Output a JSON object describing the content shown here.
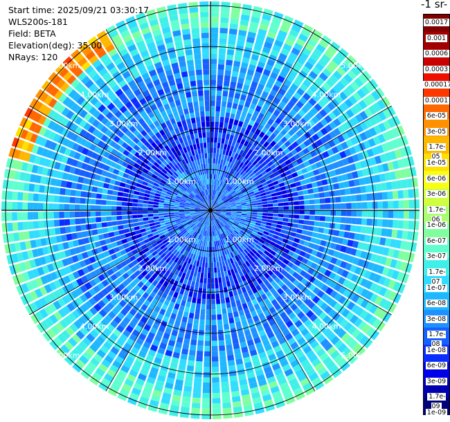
{
  "info": {
    "start_time": "Start time: 2025/09/21 03:30:17",
    "instrument": "WLS200s-181",
    "field": "Field: BETA",
    "elevation": "Elevation(deg): 35.00",
    "nrays": "NRays: 120"
  },
  "chart_data": {
    "type": "heatmap",
    "projection": "polar-ppi",
    "field": "BETA",
    "elevation_deg": 35.0,
    "n_rays": 120,
    "max_range_km": 5.0,
    "range_rings_km": [
      1,
      2,
      3,
      4,
      5
    ],
    "ring_labels": [
      "1.00km",
      "2.00km",
      "3.00km",
      "4.00km",
      "5.00km"
    ],
    "colorbar": {
      "title": "-1 sr-",
      "scale": "log",
      "range": [
        1e-09,
        0.0017
      ],
      "colors": [
        "#00007a",
        "#0000b0",
        "#0000e8",
        "#0a2cff",
        "#1560ff",
        "#1e90ff",
        "#1fb8ff",
        "#30dcff",
        "#40f0e8",
        "#60ffd0",
        "#80ffa0",
        "#a8ff70",
        "#d0ff40",
        "#f8ff10",
        "#ffe000",
        "#ffb800",
        "#ff9000",
        "#ff6800",
        "#ff3800",
        "#f01000",
        "#c80000",
        "#a00000",
        "#800000"
      ],
      "tick_labels": [
        "0.0017",
        "0.001",
        "0.0006",
        "0.0003",
        "0.00017",
        "0.0001",
        "6e-05",
        "3e-05",
        "1.7e-05",
        "1e-05",
        "6e-06",
        "3e-06",
        "1.7e-06",
        "1e-06",
        "6e-07",
        "3e-07",
        "1.7e-07",
        "1e-07",
        "6e-08",
        "3e-08",
        "1.7e-08",
        "1e-08",
        "6e-09",
        "3e-09",
        "1.7e-09",
        "1e-09"
      ]
    },
    "regions": [
      {
        "range_km": [
          0.0,
          1.2
        ],
        "value": 2e-08
      },
      {
        "range_km": [
          1.2,
          2.2
        ],
        "value": 1e-08
      },
      {
        "range_km": [
          2.2,
          3.6
        ],
        "value": 3e-08
      },
      {
        "range_km": [
          3.6,
          4.4
        ],
        "value": 1e-07
      },
      {
        "range_km": [
          4.4,
          5.0
        ],
        "value": 3e-07
      },
      {
        "azimuth_deg": [
          285,
          330
        ],
        "range_km": [
          4.5,
          5.0
        ],
        "value": 3e-05
      }
    ]
  }
}
